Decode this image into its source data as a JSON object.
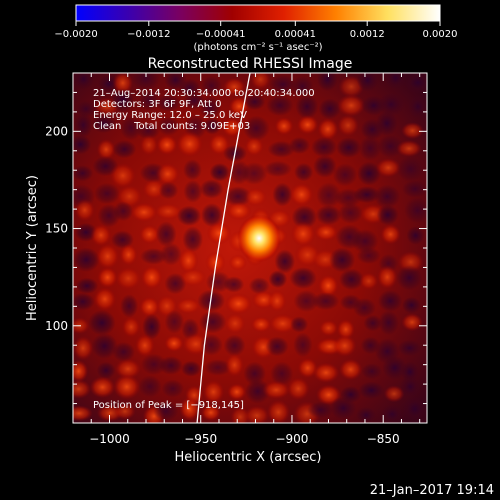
{
  "chart_data": {
    "type": "heatmap",
    "title": "Reconstructed RHESSI Image",
    "xlabel": "Heliocentric X (arcsec)",
    "ylabel": "Heliocentric Y (arcsec)",
    "xlim": [
      -1020,
      -826
    ],
    "ylim": [
      50,
      230
    ],
    "x_ticks": [
      -1000,
      -950,
      -900,
      -850
    ],
    "x_tick_labels": [
      "−1000",
      "−950",
      "−900",
      "−850"
    ],
    "y_ticks": [
      100,
      150,
      200
    ],
    "y_tick_labels": [
      "100",
      "150",
      "200"
    ],
    "colorbar": {
      "range": [
        -0.002,
        0.002
      ],
      "ticks": [
        -0.002,
        -0.0012,
        -0.00041,
        0.00041,
        0.0012,
        0.002
      ],
      "tick_labels": [
        "−0.0020",
        "−0.0012",
        "−0.00041",
        "0.00041",
        "0.0012",
        "0.0020"
      ],
      "units": "(photons cm⁻² s⁻¹ asec⁻²)",
      "colors": [
        "#0000ff",
        "#3a00b0",
        "#7a0060",
        "#a00000",
        "#e02000",
        "#ff8000",
        "#ffe060",
        "#ffffff"
      ]
    },
    "info_lines": [
      "21–Aug–2014 20:30:34.000 to 20:40:34.000",
      "Detectors: 3F 6F 9F, Att 0",
      "Energy Range: 12.0 – 25.0 keV",
      "Clean    Total counts: 9.09E+03"
    ],
    "peak_label": "Position of Peak = [−918,145]",
    "peak": {
      "x": -918,
      "y": 145
    },
    "limb_curve": [
      {
        "x": -952,
        "y": 50
      },
      {
        "x": -948,
        "y": 90
      },
      {
        "x": -942,
        "y": 130
      },
      {
        "x": -935,
        "y": 170
      },
      {
        "x": -927,
        "y": 210
      },
      {
        "x": -923,
        "y": 230
      }
    ]
  },
  "footer": {
    "timestamp": "21–Jan–2017 19:14"
  }
}
